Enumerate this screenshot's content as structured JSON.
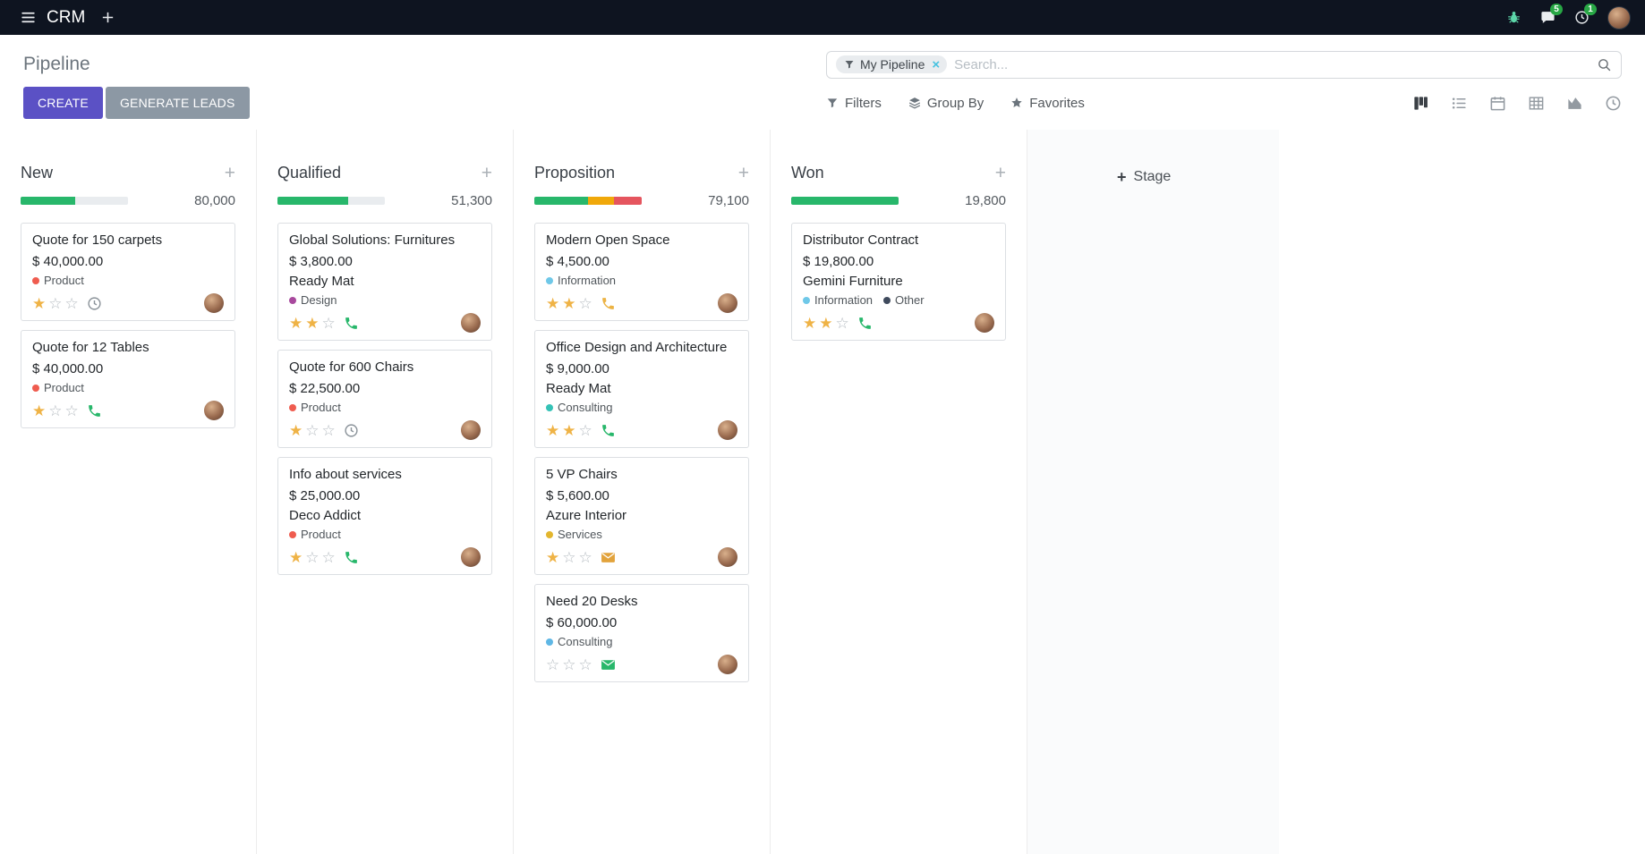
{
  "navbar": {
    "app_name": "CRM",
    "messages_badge": "5",
    "activities_badge": "1"
  },
  "control_panel": {
    "title": "Pipeline",
    "buttons": {
      "create": "CREATE",
      "generate_leads": "GENERATE LEADS"
    },
    "search": {
      "facet_label": "My Pipeline",
      "facet_remove": "×",
      "placeholder": "Search..."
    },
    "filter_menus": {
      "filters": "Filters",
      "group_by": "Group By",
      "favorites": "Favorites"
    },
    "view_switcher": [
      {
        "name": "kanban",
        "active": true
      },
      {
        "name": "list",
        "active": false
      },
      {
        "name": "calendar",
        "active": false
      },
      {
        "name": "pivot",
        "active": false
      },
      {
        "name": "graph",
        "active": false
      },
      {
        "name": "activity",
        "active": false
      }
    ]
  },
  "colors": {
    "primary": "#5b51c5",
    "secondary": "#8c98a4",
    "progress_green": "#28b76b",
    "progress_orange": "#f0a80a",
    "progress_red": "#e5555e",
    "star_filled": "#efb346",
    "badge_green": "#28a745"
  },
  "board": {
    "stage_adder": "Stage",
    "columns": [
      {
        "title": "New",
        "amount": "80,000",
        "progress": [
          {
            "color": "#28b76b",
            "pct": 51
          }
        ],
        "cards": [
          {
            "title": "Quote for 150 carpets",
            "amount": "$ 40,000.00",
            "partner": "",
            "tags": [
              {
                "label": "Product",
                "color": "#ef5c4f"
              }
            ],
            "stars": 1,
            "activity": {
              "icon": "clock",
              "color": "#8a9299"
            }
          },
          {
            "title": "Quote for 12 Tables",
            "amount": "$ 40,000.00",
            "partner": "",
            "tags": [
              {
                "label": "Product",
                "color": "#ef5c4f"
              }
            ],
            "stars": 1,
            "activity": {
              "icon": "phone",
              "color": "#28b76b"
            }
          }
        ]
      },
      {
        "title": "Qualified",
        "amount": "51,300",
        "progress": [
          {
            "color": "#28b76b",
            "pct": 66
          }
        ],
        "cards": [
          {
            "title": "Global Solutions: Furnitures",
            "amount": "$ 3,800.00",
            "partner": "Ready Mat",
            "tags": [
              {
                "label": "Design",
                "color": "#a8499d"
              }
            ],
            "stars": 2,
            "activity": {
              "icon": "phone",
              "color": "#28b76b"
            }
          },
          {
            "title": "Quote for 600 Chairs",
            "amount": "$ 22,500.00",
            "partner": "",
            "tags": [
              {
                "label": "Product",
                "color": "#ef5c4f"
              }
            ],
            "stars": 1,
            "activity": {
              "icon": "clock",
              "color": "#8a9299"
            }
          },
          {
            "title": "Info about services",
            "amount": "$ 25,000.00",
            "partner": "Deco Addict",
            "tags": [
              {
                "label": "Product",
                "color": "#ef5c4f"
              }
            ],
            "stars": 1,
            "activity": {
              "icon": "phone",
              "color": "#28b76b"
            }
          }
        ]
      },
      {
        "title": "Proposition",
        "amount": "79,100",
        "progress": [
          {
            "color": "#28b76b",
            "pct": 50
          },
          {
            "color": "#f0a80a",
            "pct": 24
          },
          {
            "color": "#e5555e",
            "pct": 26
          }
        ],
        "cards": [
          {
            "title": "Modern Open Space",
            "amount": "$ 4,500.00",
            "partner": "",
            "tags": [
              {
                "label": "Information",
                "color": "#6fc8e8"
              }
            ],
            "stars": 2,
            "activity": {
              "icon": "phone",
              "color": "#ecb344"
            }
          },
          {
            "title": "Office Design and Architecture",
            "amount": "$ 9,000.00",
            "partner": "Ready Mat",
            "tags": [
              {
                "label": "Consulting",
                "color": "#35c2b6"
              }
            ],
            "stars": 2,
            "activity": {
              "icon": "phone",
              "color": "#28b76b"
            }
          },
          {
            "title": "5 VP Chairs",
            "amount": "$ 5,600.00",
            "partner": "Azure Interior",
            "tags": [
              {
                "label": "Services",
                "color": "#e3b62e"
              }
            ],
            "stars": 1,
            "activity": {
              "icon": "envelope",
              "color": "#e2a33c"
            }
          },
          {
            "title": "Need 20 Desks",
            "amount": "$ 60,000.00",
            "partner": "",
            "tags": [
              {
                "label": "Consulting",
                "color": "#5fb7e5"
              }
            ],
            "stars": 0,
            "activity": {
              "icon": "envelope",
              "color": "#28b76b"
            }
          }
        ]
      },
      {
        "title": "Won",
        "amount": "19,800",
        "progress": [
          {
            "color": "#28b76b",
            "pct": 100
          }
        ],
        "cards": [
          {
            "title": "Distributor Contract",
            "amount": "$ 19,800.00",
            "partner": "Gemini Furniture",
            "tags": [
              {
                "label": "Information",
                "color": "#6fc8e8"
              },
              {
                "label": "Other",
                "color": "#3f4a5d"
              }
            ],
            "stars": 2,
            "activity": {
              "icon": "phone",
              "color": "#28b76b"
            }
          }
        ]
      }
    ]
  }
}
